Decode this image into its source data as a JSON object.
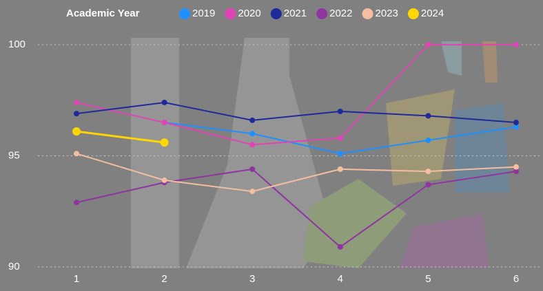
{
  "chart_data": {
    "type": "line",
    "legend_title": "Academic Year",
    "x": [
      1,
      2,
      3,
      4,
      5,
      6
    ],
    "xlim": [
      1,
      6
    ],
    "ylim": [
      90,
      100
    ],
    "yticks": [
      90,
      95,
      100
    ],
    "grid": true,
    "legend": "top",
    "series": [
      {
        "name": "2019",
        "color": "#1e90ff",
        "values": [
          null,
          96.5,
          96.0,
          95.1,
          95.7,
          96.3
        ]
      },
      {
        "name": "2020",
        "color": "#e044b4",
        "values": [
          97.4,
          96.5,
          95.5,
          95.8,
          100,
          100
        ]
      },
      {
        "name": "2021",
        "color": "#1f2a9a",
        "values": [
          96.9,
          97.4,
          96.6,
          97.0,
          96.8,
          96.5
        ]
      },
      {
        "name": "2022",
        "color": "#8e35a0",
        "values": [
          92.9,
          93.8,
          94.4,
          90.9,
          93.7,
          94.3
        ]
      },
      {
        "name": "2023",
        "color": "#f4bfa0",
        "values": [
          95.1,
          93.9,
          93.4,
          94.4,
          94.3,
          94.5
        ]
      },
      {
        "name": "2024",
        "color": "#ffd700",
        "values": [
          96.1,
          95.6,
          null,
          null,
          null,
          null
        ]
      }
    ]
  }
}
